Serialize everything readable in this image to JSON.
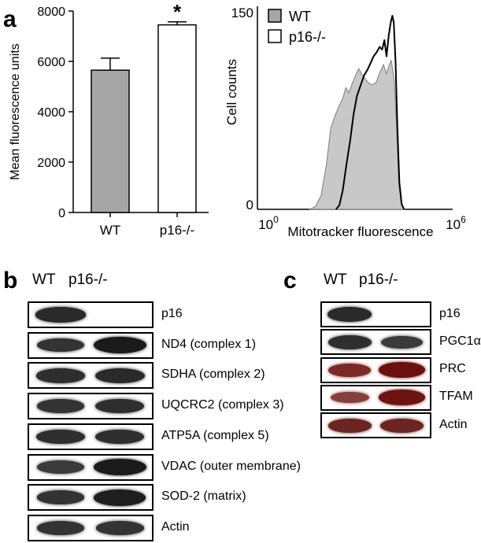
{
  "panels": {
    "a": "a",
    "b": "b",
    "c": "c"
  },
  "chart_data": [
    {
      "type": "bar",
      "categories": [
        "WT",
        "p16-/-"
      ],
      "values": [
        5650,
        7450
      ],
      "errors": [
        480,
        120
      ],
      "colors": [
        "#a6a6a6",
        "#ffffff"
      ],
      "significance": [
        "",
        "*"
      ],
      "ylabel": "Mean fluorescence units",
      "ylim": [
        0,
        8000
      ],
      "yticks": [
        "0",
        "2000",
        "4000",
        "6000",
        "8000"
      ]
    },
    {
      "type": "area",
      "xlabel": "Mitotracker fluorescence",
      "ylabel": "Cell counts",
      "xscale": "log",
      "xlim": [
        1,
        1000000
      ],
      "ylim": [
        0,
        150
      ],
      "xtick_base": [
        "10",
        "10"
      ],
      "xtick_exp": [
        "0",
        "6"
      ],
      "yticks": [
        "0",
        "150"
      ],
      "legend_position": "top-left",
      "series": [
        {
          "name": "WT",
          "fill": "#c8c8c8",
          "stroke": "#8c8c8c",
          "points": [
            [
              40,
              0
            ],
            [
              60,
              2
            ],
            [
              90,
              10
            ],
            [
              130,
              32
            ],
            [
              180,
              60
            ],
            [
              250,
              70
            ],
            [
              320,
              76
            ],
            [
              420,
              82
            ],
            [
              520,
              90
            ],
            [
              650,
              86
            ],
            [
              820,
              93
            ],
            [
              1000,
              98
            ],
            [
              1300,
              104
            ],
            [
              1600,
              100
            ],
            [
              2100,
              96
            ],
            [
              2700,
              93
            ],
            [
              3500,
              92
            ],
            [
              4500,
              94
            ],
            [
              6000,
              102
            ],
            [
              7500,
              107
            ],
            [
              9200,
              100
            ],
            [
              11000,
              106
            ],
            [
              13000,
              110
            ],
            [
              16000,
              95
            ],
            [
              19000,
              60
            ],
            [
              22000,
              20
            ],
            [
              26000,
              5
            ],
            [
              32000,
              0
            ]
          ]
        },
        {
          "name": "p16-/-",
          "fill": "none",
          "stroke": "#000000",
          "points": [
            [
              260,
              0
            ],
            [
              330,
              3
            ],
            [
              420,
              14
            ],
            [
              550,
              34
            ],
            [
              700,
              50
            ],
            [
              900,
              70
            ],
            [
              1150,
              84
            ],
            [
              1500,
              92
            ],
            [
              1900,
              99
            ],
            [
              2400,
              103
            ],
            [
              3000,
              108
            ],
            [
              3700,
              113
            ],
            [
              4600,
              116
            ],
            [
              5700,
              120
            ],
            [
              6800,
              118
            ],
            [
              8000,
              125
            ],
            [
              9300,
              113
            ],
            [
              10800,
              128
            ],
            [
              12500,
              138
            ],
            [
              14000,
              143
            ],
            [
              15500,
              138
            ],
            [
              17500,
              110
            ],
            [
              20000,
              60
            ],
            [
              23000,
              20
            ],
            [
              27000,
              4
            ],
            [
              32000,
              0
            ]
          ]
        }
      ]
    }
  ],
  "blot_b": {
    "headers": [
      "WT",
      "p16-/-"
    ],
    "rows": [
      {
        "label": "p16",
        "wt": 0.85,
        "ko": 0.0,
        "color": "#1a1a1a"
      },
      {
        "label": "ND4 (complex 1)",
        "wt": 0.75,
        "ko": 1.0,
        "color": "#1a1a1a"
      },
      {
        "label": "SDHA (complex 2)",
        "wt": 0.8,
        "ko": 0.85,
        "color": "#1a1a1a"
      },
      {
        "label": "UQCRC2 (complex 3)",
        "wt": 0.75,
        "ko": 0.8,
        "color": "#1a1a1a"
      },
      {
        "label": "ATP5A (complex 5)",
        "wt": 0.8,
        "ko": 0.8,
        "color": "#1a1a1a"
      },
      {
        "label": "VDAC (outer membrane)",
        "wt": 0.7,
        "ko": 1.0,
        "color": "#1a1a1a"
      },
      {
        "label": "SOD-2 (matrix)",
        "wt": 0.75,
        "ko": 0.95,
        "color": "#1a1a1a"
      },
      {
        "label": "Actin",
        "wt": 0.75,
        "ko": 0.75,
        "color": "#1a1a1a"
      }
    ]
  },
  "blot_c": {
    "headers": [
      "WT",
      "p16-/-"
    ],
    "rows": [
      {
        "label": "p16",
        "wt": 0.85,
        "ko": 0.0,
        "color": "#1a1a1a"
      },
      {
        "label": "PGC1α",
        "wt": 0.8,
        "ko": 0.7,
        "color": "#1a1a1a"
      },
      {
        "label": "PRC",
        "wt": 0.75,
        "ko": 1.0,
        "color": "#6b100c"
      },
      {
        "label": "TFAM",
        "wt": 0.55,
        "ko": 0.95,
        "color": "#6b100c"
      },
      {
        "label": "Actin",
        "wt": 0.8,
        "ko": 0.8,
        "color": "#5e0f0c"
      }
    ]
  }
}
